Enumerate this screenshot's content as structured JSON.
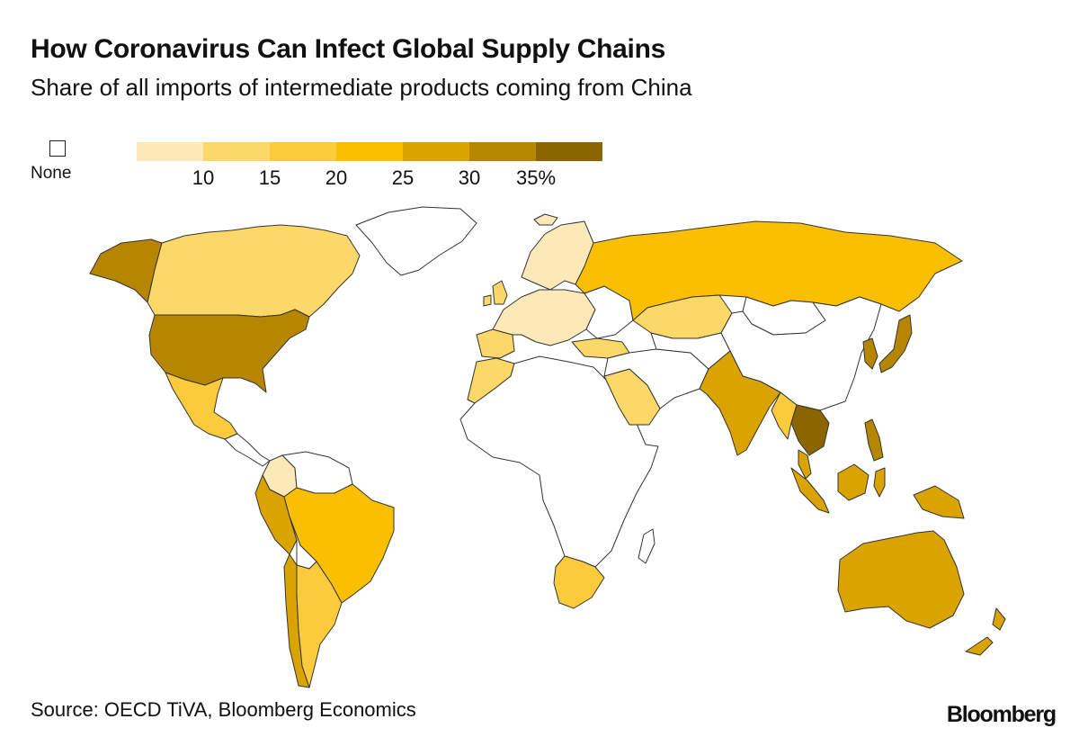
{
  "title": "How Coronavirus Can Infect Global Supply Chains",
  "subtitle": "Share of all imports of intermediate products coming from China",
  "legend": {
    "none_label": "None",
    "ticks": [
      "10",
      "15",
      "20",
      "25",
      "30",
      "35%"
    ],
    "colors": [
      "#fde9b8",
      "#fcd868",
      "#fbcb3b",
      "#f9bf00",
      "#d9a300",
      "#b68600",
      "#8a6500"
    ]
  },
  "source": "Source: OECD TiVA, Bloomberg Economics",
  "brand": "Bloomberg",
  "regions": [
    {
      "name": "alaska",
      "color": "#b68600"
    },
    {
      "name": "canada",
      "color": "#fcd868"
    },
    {
      "name": "greenland",
      "color": "#ffffff"
    },
    {
      "name": "usa",
      "color": "#b68600"
    },
    {
      "name": "mexico",
      "color": "#fbcb3b"
    },
    {
      "name": "central-america",
      "color": "#ffffff"
    },
    {
      "name": "colombia",
      "color": "#fde9b8"
    },
    {
      "name": "venezuela-guianas",
      "color": "#ffffff"
    },
    {
      "name": "brazil",
      "color": "#f9bf00"
    },
    {
      "name": "peru",
      "color": "#d9a300"
    },
    {
      "name": "bolivia",
      "color": "#ffffff"
    },
    {
      "name": "chile",
      "color": "#d9a300"
    },
    {
      "name": "argentina",
      "color": "#fbcb3b"
    },
    {
      "name": "iceland",
      "color": "#fde9b8"
    },
    {
      "name": "scandinavia",
      "color": "#fde9b8"
    },
    {
      "name": "uk",
      "color": "#fcd868"
    },
    {
      "name": "iberia",
      "color": "#fcd868"
    },
    {
      "name": "western-europe",
      "color": "#fde9b8"
    },
    {
      "name": "eastern-europe",
      "color": "#ffffff"
    },
    {
      "name": "turkey",
      "color": "#fcd868"
    },
    {
      "name": "morocco",
      "color": "#fcd868"
    },
    {
      "name": "africa",
      "color": "#ffffff"
    },
    {
      "name": "south-africa",
      "color": "#fbcb3b"
    },
    {
      "name": "madagascar",
      "color": "#ffffff"
    },
    {
      "name": "saudi-arabia",
      "color": "#fcd868"
    },
    {
      "name": "middle-east",
      "color": "#ffffff"
    },
    {
      "name": "russia",
      "color": "#f9bf00"
    },
    {
      "name": "kazakhstan",
      "color": "#fcd868"
    },
    {
      "name": "central-asia",
      "color": "#ffffff"
    },
    {
      "name": "mongolia",
      "color": "#ffffff"
    },
    {
      "name": "china",
      "color": "#ffffff"
    },
    {
      "name": "india",
      "color": "#d9a300"
    },
    {
      "name": "myanmar",
      "color": "#fbcb3b"
    },
    {
      "name": "indochina",
      "color": "#8a6500"
    },
    {
      "name": "malay-peninsula",
      "color": "#d9a300"
    },
    {
      "name": "sumatra",
      "color": "#d9a300"
    },
    {
      "name": "borneo",
      "color": "#d9a300"
    },
    {
      "name": "sulawesi",
      "color": "#d9a300"
    },
    {
      "name": "philippines",
      "color": "#b68600"
    },
    {
      "name": "korea",
      "color": "#b68600"
    },
    {
      "name": "japan",
      "color": "#b68600"
    },
    {
      "name": "papua",
      "color": "#d9a300"
    },
    {
      "name": "australia",
      "color": "#d9a300"
    },
    {
      "name": "new-zealand",
      "color": "#d9a300"
    }
  ]
}
